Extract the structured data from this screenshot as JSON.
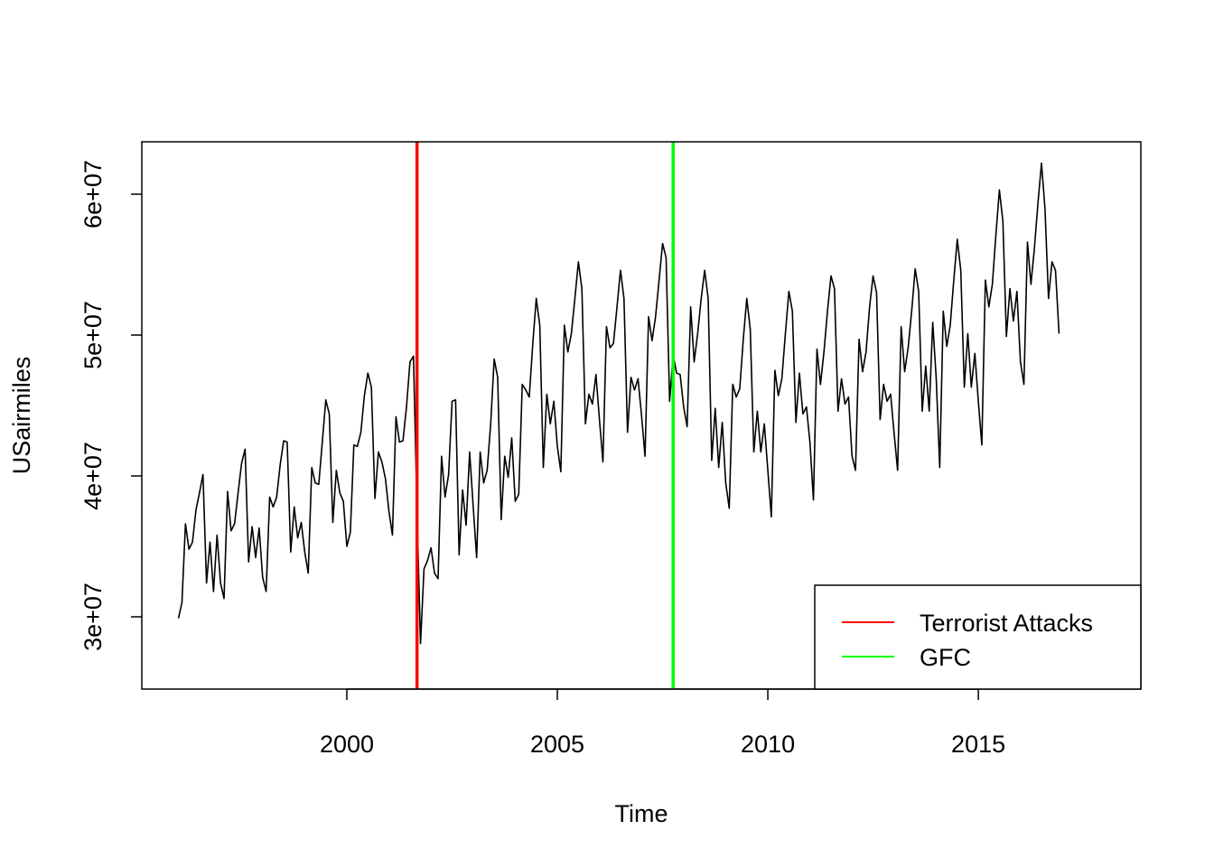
{
  "chart_data": {
    "type": "line",
    "xlabel": "Time",
    "ylabel": "USairmiles",
    "x": [
      1996,
      1996.083,
      1996.167,
      1996.25,
      1996.333,
      1996.417,
      1996.5,
      1996.583,
      1996.667,
      1996.75,
      1996.833,
      1996.917,
      1997,
      1997.083,
      1997.167,
      1997.25,
      1997.333,
      1997.417,
      1997.5,
      1997.583,
      1997.667,
      1997.75,
      1997.833,
      1997.917,
      1998,
      1998.083,
      1998.167,
      1998.25,
      1998.333,
      1998.417,
      1998.5,
      1998.583,
      1998.667,
      1998.75,
      1998.833,
      1998.917,
      1999,
      1999.083,
      1999.167,
      1999.25,
      1999.333,
      1999.417,
      1999.5,
      1999.583,
      1999.667,
      1999.75,
      1999.833,
      1999.917,
      2000,
      2000.083,
      2000.167,
      2000.25,
      2000.333,
      2000.417,
      2000.5,
      2000.583,
      2000.667,
      2000.75,
      2000.833,
      2000.917,
      2001,
      2001.083,
      2001.167,
      2001.25,
      2001.333,
      2001.417,
      2001.5,
      2001.583,
      2001.667,
      2001.75,
      2001.833,
      2001.917,
      2002,
      2002.083,
      2002.167,
      2002.25,
      2002.333,
      2002.417,
      2002.5,
      2002.583,
      2002.667,
      2002.75,
      2002.833,
      2002.917,
      2003,
      2003.083,
      2003.167,
      2003.25,
      2003.333,
      2003.417,
      2003.5,
      2003.583,
      2003.667,
      2003.75,
      2003.833,
      2003.917,
      2004,
      2004.083,
      2004.167,
      2004.25,
      2004.333,
      2004.417,
      2004.5,
      2004.583,
      2004.667,
      2004.75,
      2004.833,
      2004.917,
      2005,
      2005.083,
      2005.167,
      2005.25,
      2005.333,
      2005.417,
      2005.5,
      2005.583,
      2005.667,
      2005.75,
      2005.833,
      2005.917,
      2006,
      2006.083,
      2006.167,
      2006.25,
      2006.333,
      2006.417,
      2006.5,
      2006.583,
      2006.667,
      2006.75,
      2006.833,
      2006.917,
      2007,
      2007.083,
      2007.167,
      2007.25,
      2007.333,
      2007.417,
      2007.5,
      2007.583,
      2007.667,
      2007.75,
      2007.833,
      2007.917,
      2008,
      2008.083,
      2008.167,
      2008.25,
      2008.333,
      2008.417,
      2008.5,
      2008.583,
      2008.667,
      2008.75,
      2008.833,
      2008.917,
      2009,
      2009.083,
      2009.167,
      2009.25,
      2009.333,
      2009.417,
      2009.5,
      2009.583,
      2009.667,
      2009.75,
      2009.833,
      2009.917,
      2010,
      2010.083,
      2010.167,
      2010.25,
      2010.333,
      2010.417,
      2010.5,
      2010.583,
      2010.667,
      2010.75,
      2010.833,
      2010.917,
      2011,
      2011.083,
      2011.167,
      2011.25,
      2011.333,
      2011.417,
      2011.5,
      2011.583,
      2011.667,
      2011.75,
      2011.833,
      2011.917,
      2012,
      2012.083,
      2012.167,
      2012.25,
      2012.333,
      2012.417,
      2012.5,
      2012.583,
      2012.667,
      2012.75,
      2012.833,
      2012.917,
      2013,
      2013.083,
      2013.167,
      2013.25,
      2013.333,
      2013.417,
      2013.5,
      2013.583,
      2013.667,
      2013.75,
      2013.833,
      2013.917,
      2014,
      2014.083,
      2014.167,
      2014.25,
      2014.333,
      2014.417,
      2014.5,
      2014.583,
      2014.667,
      2014.75,
      2014.833,
      2014.917,
      2015,
      2015.083,
      2015.167,
      2015.25,
      2015.333,
      2015.417,
      2015.5,
      2015.583,
      2015.667,
      2015.75,
      2015.833,
      2015.917,
      2016,
      2016.083,
      2016.167,
      2016.25,
      2016.333,
      2016.417,
      2016.5,
      2016.583,
      2016.667,
      2016.75,
      2016.833,
      2016.917
    ],
    "series": [
      {
        "color": "#000000",
        "values": [
          29900000.0,
          31000000.0,
          36600000.0,
          34800000.0,
          35300000.0,
          37600000.0,
          38800000.0,
          40100000.0,
          32400000.0,
          35300000.0,
          31800000.0,
          35800000.0,
          32400000.0,
          31300000.0,
          38900000.0,
          36100000.0,
          36600000.0,
          38800000.0,
          40900000.0,
          41900000.0,
          33900000.0,
          36400000.0,
          34200000.0,
          36300000.0,
          32800000.0,
          31800000.0,
          38500000.0,
          37800000.0,
          38500000.0,
          40800000.0,
          42500000.0,
          42400000.0,
          34600000.0,
          37800000.0,
          35600000.0,
          36700000.0,
          34600000.0,
          33100000.0,
          40600000.0,
          39500000.0,
          39400000.0,
          42400000.0,
          45400000.0,
          44400000.0,
          36700000.0,
          40400000.0,
          38800000.0,
          38200000.0,
          35000000.0,
          36000000.0,
          42200000.0,
          42100000.0,
          43100000.0,
          45700000.0,
          47300000.0,
          46300000.0,
          38400000.0,
          41700000.0,
          41000000.0,
          39800000.0,
          37500000.0,
          35800000.0,
          44200000.0,
          42400000.0,
          42500000.0,
          44900000.0,
          48100000.0,
          48500000.0,
          37500000.0,
          28100000.0,
          33400000.0,
          34000000.0,
          34900000.0,
          33100000.0,
          32700000.0,
          41400000.0,
          38500000.0,
          40100000.0,
          45300000.0,
          45400000.0,
          34400000.0,
          39000000.0,
          36500000.0,
          41700000.0,
          37900000.0,
          34200000.0,
          41700000.0,
          39500000.0,
          40400000.0,
          43700000.0,
          48300000.0,
          47000000.0,
          36900000.0,
          41400000.0,
          39900000.0,
          42700000.0,
          38200000.0,
          38700000.0,
          46500000.0,
          46100000.0,
          45600000.0,
          49400000.0,
          52600000.0,
          50700000.0,
          40600000.0,
          45800000.0,
          43700000.0,
          45300000.0,
          42100000.0,
          40300000.0,
          50700000.0,
          48800000.0,
          50100000.0,
          52600000.0,
          55200000.0,
          53300000.0,
          43700000.0,
          45800000.0,
          45100000.0,
          47200000.0,
          44000000.0,
          41000000.0,
          50600000.0,
          49100000.0,
          49400000.0,
          52000000.0,
          54600000.0,
          52600000.0,
          43100000.0,
          47000000.0,
          46100000.0,
          46900000.0,
          44300000.0,
          41400000.0,
          51300000.0,
          49600000.0,
          51300000.0,
          53900000.0,
          56500000.0,
          55500000.0,
          45300000.0,
          48600000.0,
          47300000.0,
          47200000.0,
          44900000.0,
          43500000.0,
          52000000.0,
          48100000.0,
          50100000.0,
          52600000.0,
          54600000.0,
          52600000.0,
          41100000.0,
          44800000.0,
          40600000.0,
          43800000.0,
          39500000.0,
          37700000.0,
          46500000.0,
          45600000.0,
          46200000.0,
          49700000.0,
          52600000.0,
          50400000.0,
          41700000.0,
          44600000.0,
          41700000.0,
          43700000.0,
          40400000.0,
          37100000.0,
          47500000.0,
          45700000.0,
          46900000.0,
          50100000.0,
          53100000.0,
          51700000.0,
          43800000.0,
          47300000.0,
          44400000.0,
          44900000.0,
          42400000.0,
          38300000.0,
          49000000.0,
          46500000.0,
          48800000.0,
          51700000.0,
          54200000.0,
          53300000.0,
          44600000.0,
          46900000.0,
          45100000.0,
          45600000.0,
          41400000.0,
          40400000.0,
          49700000.0,
          47400000.0,
          48800000.0,
          52000000.0,
          54200000.0,
          53000000.0,
          44000000.0,
          46500000.0,
          45300000.0,
          45800000.0,
          43000000.0,
          40400000.0,
          50600000.0,
          47400000.0,
          49100000.0,
          51700000.0,
          54700000.0,
          53100000.0,
          44600000.0,
          47800000.0,
          44600000.0,
          50900000.0,
          46900000.0,
          40600000.0,
          51700000.0,
          49200000.0,
          50700000.0,
          53900000.0,
          56800000.0,
          54600000.0,
          46300000.0,
          50100000.0,
          46300000.0,
          48700000.0,
          45300000.0,
          42200000.0,
          53900000.0,
          52000000.0,
          53600000.0,
          57100000.0,
          60300000.0,
          58100000.0,
          49900000.0,
          53300000.0,
          51000000.0,
          53100000.0,
          48100000.0,
          46500000.0,
          56600000.0,
          53600000.0,
          56200000.0,
          59400000.0,
          62200000.0,
          59000000.0,
          52600000.0,
          55200000.0,
          54600000.0,
          50100000.0
        ]
      }
    ],
    "vlines": [
      {
        "name": "Terrorist Attacks",
        "x": 2001.667,
        "color": "#ff0000"
      },
      {
        "name": "GFC",
        "x": 2007.75,
        "color": "#00ff00"
      }
    ],
    "legend": "bottomright",
    "xlim": [
      1995.13,
      2018.86
    ],
    "xticks": [
      2000,
      2005,
      2010,
      2015
    ],
    "ylim": [
      24870000.0,
      63720000.0
    ],
    "yticks": [
      {
        "value": 30000000.0,
        "label": "3e+07"
      },
      {
        "value": 40000000.0,
        "label": "4e+07"
      },
      {
        "value": 50000000.0,
        "label": "5e+07"
      },
      {
        "value": 60000000.0,
        "label": "6e+07"
      }
    ]
  }
}
